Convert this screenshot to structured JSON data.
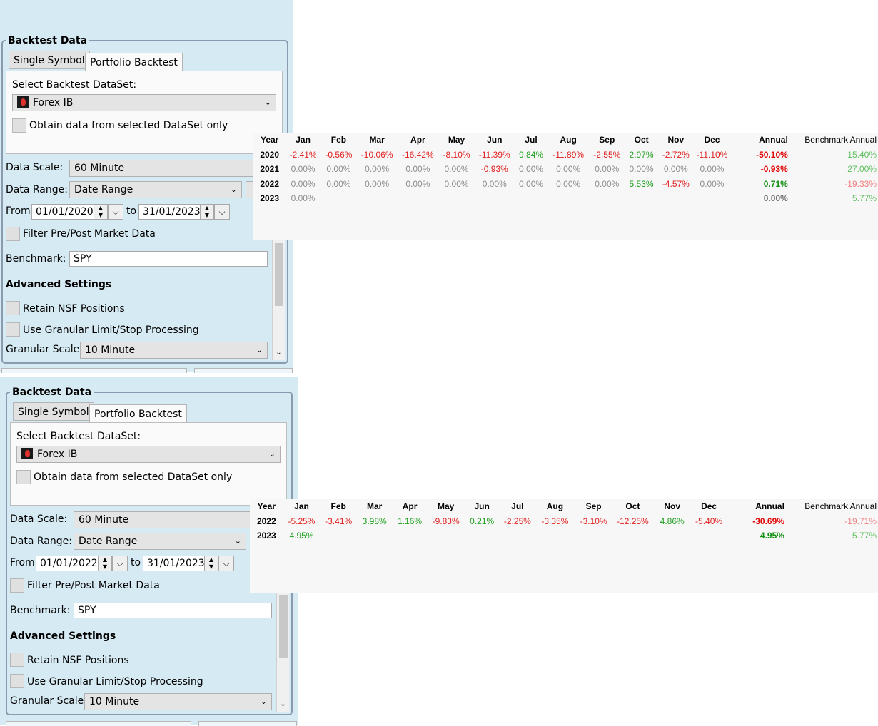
{
  "panels": [
    {
      "group_title": "Backtest Data",
      "tabs": [
        "Single Symbol",
        "Portfolio Backtest"
      ],
      "select_dataset_label": "Select Backtest DataSet:",
      "dataset": "Forex IB",
      "obtain_label": "Obtain data from selected DataSet only",
      "data_scale_label": "Data Scale:",
      "data_scale": "60 Minute",
      "data_range_label": "Data Range:",
      "data_range": "Date Range",
      "from_label": "From",
      "from_date": "01/01/2020",
      "to_label": "to",
      "to_date": "31/01/2023",
      "filter_label": "Filter Pre/Post Market Data",
      "benchmark_label": "Benchmark:",
      "benchmark": "SPY",
      "advanced_label": "Advanced Settings",
      "retain_label": "Retain NSF Positions",
      "granular_proc_label": "Use Granular Limit/Stop Processing",
      "granular_scale_label": "Granular Scale",
      "granular_scale": "10 Minute"
    },
    {
      "group_title": "Backtest Data",
      "tabs": [
        "Single Symbol",
        "Portfolio Backtest"
      ],
      "select_dataset_label": "Select Backtest DataSet:",
      "dataset": "Forex IB",
      "obtain_label": "Obtain data from selected DataSet only",
      "data_scale_label": "Data Scale:",
      "data_scale": "60 Minute",
      "data_range_label": "Data Range:",
      "data_range": "Date Range",
      "from_label": "From",
      "from_date": "01/01/2022",
      "to_label": "to",
      "to_date": "31/01/2023",
      "filter_label": "Filter Pre/Post Market Data",
      "benchmark_label": "Benchmark:",
      "benchmark": "SPY",
      "advanced_label": "Advanced Settings",
      "retain_label": "Retain NSF Positions",
      "granular_proc_label": "Use Granular Limit/Stop Processing",
      "granular_scale_label": "Granular Scale",
      "granular_scale": "10 Minute"
    }
  ],
  "returns_tables": [
    {
      "headers": [
        "Year",
        "Jan",
        "Feb",
        "Mar",
        "Apr",
        "May",
        "Jun",
        "Jul",
        "Aug",
        "Sep",
        "Oct",
        "Nov",
        "Dec",
        "Annual",
        "Benchmark Annual"
      ],
      "rows": [
        {
          "year": "2020",
          "months": [
            "-2.41%",
            "-0.56%",
            "-10.06%",
            "-16.42%",
            "-8.10%",
            "-11.39%",
            "9.84%",
            "-11.89%",
            "-2.55%",
            "2.97%",
            "-2.72%",
            "-11.10%"
          ],
          "annual": "-50.10%",
          "benchmark": "15.40%"
        },
        {
          "year": "2021",
          "months": [
            "0.00%",
            "0.00%",
            "0.00%",
            "0.00%",
            "0.00%",
            "-0.93%",
            "0.00%",
            "0.00%",
            "0.00%",
            "0.00%",
            "0.00%",
            "0.00%"
          ],
          "annual": "-0.93%",
          "benchmark": "27.00%"
        },
        {
          "year": "2022",
          "months": [
            "0.00%",
            "0.00%",
            "0.00%",
            "0.00%",
            "0.00%",
            "0.00%",
            "0.00%",
            "0.00%",
            "0.00%",
            "5.53%",
            "-4.57%",
            "0.00%"
          ],
          "annual": "0.71%",
          "benchmark": "-19.33%"
        },
        {
          "year": "2023",
          "months": [
            "0.00%",
            "",
            "",
            "",
            "",
            "",
            "",
            "",
            "",
            "",
            "",
            ""
          ],
          "annual": "0.00%",
          "benchmark": "5.77%"
        }
      ]
    },
    {
      "headers": [
        "Year",
        "Jan",
        "Feb",
        "Mar",
        "Apr",
        "May",
        "Jun",
        "Jul",
        "Aug",
        "Sep",
        "Oct",
        "Nov",
        "Dec",
        "Annual",
        "Benchmark Annual"
      ],
      "rows": [
        {
          "year": "2022",
          "months": [
            "-5.25%",
            "-3.41%",
            "3.98%",
            "1.16%",
            "-9.83%",
            "0.21%",
            "-2.25%",
            "-3.35%",
            "-3.10%",
            "-12.25%",
            "4.86%",
            "-5.40%"
          ],
          "annual": "-30.69%",
          "benchmark": "-19.71%"
        },
        {
          "year": "2023",
          "months": [
            "4.95%",
            "",
            "",
            "",
            "",
            "",
            "",
            "",
            "",
            "",
            "",
            ""
          ],
          "annual": "4.95%",
          "benchmark": "5.77%"
        }
      ]
    }
  ]
}
